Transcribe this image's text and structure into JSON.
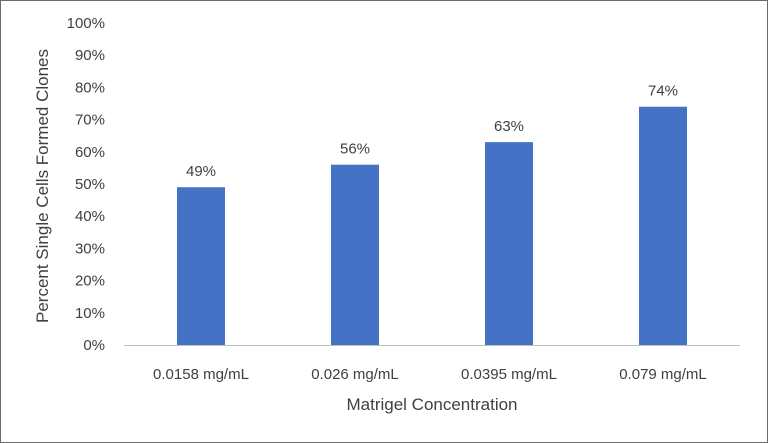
{
  "chart_data": {
    "type": "bar",
    "categories": [
      "0.0158 mg/mL",
      "0.026 mg/mL",
      "0.0395 mg/mL",
      "0.079 mg/mL"
    ],
    "values": [
      49,
      56,
      63,
      74
    ],
    "data_labels": [
      "49%",
      "56%",
      "63%",
      "74%"
    ],
    "y_ticks": [
      "0%",
      "10%",
      "20%",
      "30%",
      "40%",
      "50%",
      "60%",
      "70%",
      "80%",
      "90%",
      "100%"
    ],
    "xlabel": "Matrigel Concentration",
    "ylabel": "Percent Single Cells Formed Clones",
    "ylim": [
      0,
      100
    ],
    "grid": false,
    "bar_color": "#4472C4"
  }
}
